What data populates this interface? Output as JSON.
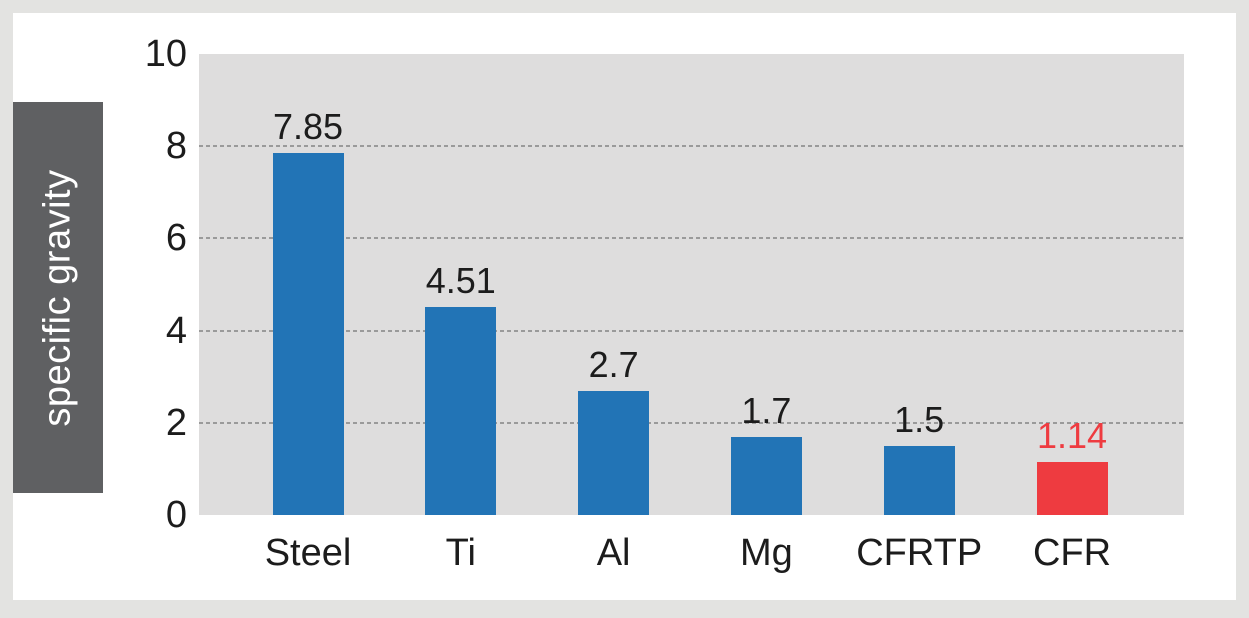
{
  "chart_data": {
    "type": "bar",
    "title": "",
    "ylabel": "specific gravity",
    "xlabel": "",
    "categories": [
      "Steel",
      "Ti",
      "Al",
      "Mg",
      "CFRTP",
      "CFR"
    ],
    "values": [
      7.85,
      4.51,
      2.7,
      1.7,
      1.5,
      1.14
    ],
    "value_labels": [
      "7.85",
      "4.51",
      "2.7",
      "1.7",
      "1.5",
      "1.14"
    ],
    "bar_colors": [
      "#2274b6",
      "#2274b6",
      "#2274b6",
      "#2274b6",
      "#2274b6",
      "#ee3b40"
    ],
    "value_label_colors": [
      "#1c1c1c",
      "#1c1c1c",
      "#1c1c1c",
      "#1c1c1c",
      "#1c1c1c",
      "#ee3b40"
    ],
    "ylim": [
      0,
      10
    ],
    "yticks": [
      0,
      2,
      4,
      6,
      8,
      10
    ],
    "grid_ticks": [
      2,
      4,
      6,
      8
    ],
    "grid_style": "dashed-horizontal",
    "legend": "none",
    "highlight_category": "CFR"
  },
  "colors": {
    "page_background": "#e3e3e1",
    "card_background": "#ffffff",
    "plot_background": "#dedddd",
    "ylabel_band_background": "#5f6062",
    "ylabel_text": "#ffffff",
    "gridline": "#9a9a9a",
    "bar_blue": "#2274b6",
    "bar_red": "#ee3b40",
    "text": "#1c1c1c"
  }
}
